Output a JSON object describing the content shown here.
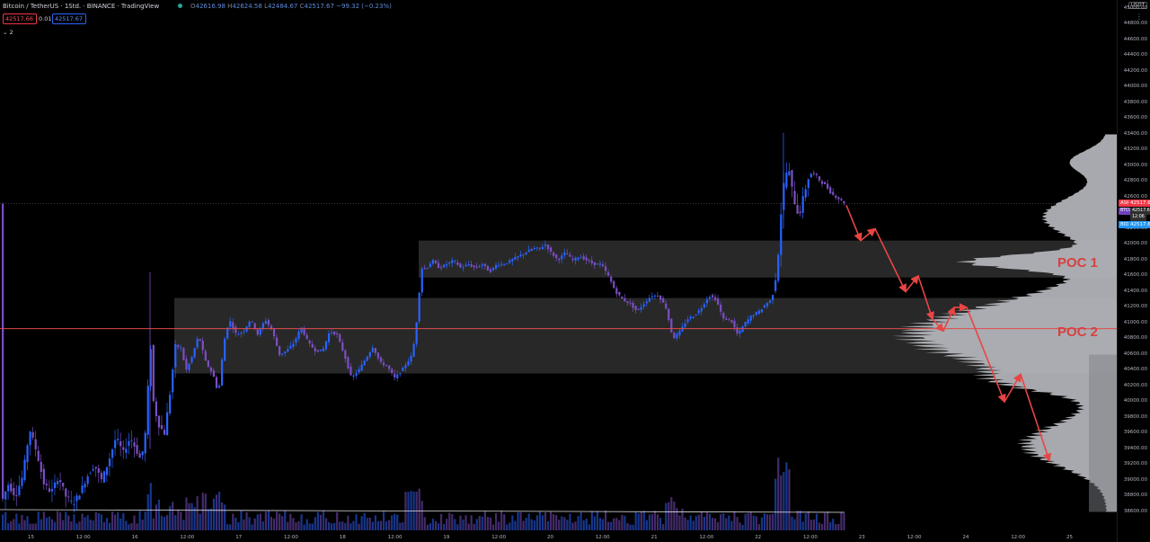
{
  "header": {
    "symbol": "Bitcoin / TetherUS · 1Std. · BINANCE · TradingView",
    "ohlc": {
      "o_label": "O",
      "o": "42616.98",
      "h_label": "H",
      "h": "42624.58",
      "l_label": "L",
      "l": "42484.67",
      "c_label": "C",
      "c": "42517.67",
      "change": "−99.32 (−0.23%)"
    },
    "sell_price": "42517.66",
    "spread": "0.01",
    "buy_price": "42517.67",
    "indicator_count": "2"
  },
  "price_axis": {
    "currency": "USDT",
    "ticks": [
      "45000.00",
      "44800.00",
      "44600.00",
      "44400.00",
      "44200.00",
      "44000.00",
      "43800.00",
      "43600.00",
      "43400.00",
      "43200.00",
      "43000.00",
      "42800.00",
      "42600.00",
      "42400.00",
      "42200.00",
      "42000.00",
      "41800.00",
      "41600.00",
      "41400.00",
      "41200.00",
      "41000.00",
      "40800.00",
      "40600.00",
      "40400.00",
      "40200.00",
      "40000.00",
      "39800.00",
      "39600.00",
      "39400.00",
      "39200.00",
      "39000.00",
      "38800.00",
      "38600.00"
    ],
    "ask_label": "ASK",
    "ask_price": "42517.67",
    "symbol_label": "BTCUSDT",
    "symbol_price": "42517.67",
    "countdown": "12:06",
    "bid_label": "BID",
    "bid_price": "42517.66"
  },
  "time_axis": {
    "ticks": [
      "15",
      "12:00",
      "16",
      "12:00",
      "17",
      "12:00",
      "18",
      "12:00",
      "19",
      "12:00",
      "20",
      "12:00",
      "21",
      "12:00",
      "22",
      "12:00",
      "23",
      "12:00",
      "24",
      "12:00",
      "25"
    ]
  },
  "annotations": {
    "poc1": "POC 1",
    "poc2": "POC 2"
  },
  "colors": {
    "up_candle": "#2962ff",
    "down_candle": "#7b4fc4",
    "poc_line": "#e04a4a",
    "zone": "#2a2a2a",
    "profile": "#b5b7bd",
    "arrow": "#e84545"
  },
  "chart_data": {
    "type": "candlestick",
    "symbol": "BTCUSDT",
    "interval": "1h",
    "ylim": [
      38500,
      45200
    ],
    "current_price": 42517.67,
    "poc_line_price": 40930,
    "zones": [
      {
        "name": "POC 1",
        "from_price": 41580,
        "to_price": 42050
      },
      {
        "name": "POC 2",
        "from_price": 40360,
        "to_price": 41320
      }
    ],
    "candle_path": [
      [
        0,
        38700
      ],
      [
        8,
        38950
      ],
      [
        16,
        38800
      ],
      [
        24,
        39050
      ],
      [
        32,
        39650
      ],
      [
        40,
        39350
      ],
      [
        48,
        38950
      ],
      [
        56,
        38850
      ],
      [
        64,
        39050
      ],
      [
        72,
        38800
      ],
      [
        80,
        38700
      ],
      [
        88,
        38850
      ],
      [
        96,
        39050
      ],
      [
        104,
        39200
      ],
      [
        112,
        39000
      ],
      [
        120,
        39250
      ],
      [
        128,
        39550
      ],
      [
        136,
        39350
      ],
      [
        144,
        39550
      ],
      [
        150,
        39400
      ],
      [
        156,
        39250
      ],
      [
        162,
        39700
      ],
      [
        166,
        40850
      ],
      [
        170,
        39950
      ],
      [
        176,
        39700
      ],
      [
        182,
        39600
      ],
      [
        188,
        40100
      ],
      [
        194,
        40700
      ],
      [
        200,
        40700
      ],
      [
        206,
        40400
      ],
      [
        212,
        40550
      ],
      [
        220,
        40850
      ],
      [
        228,
        40500
      ],
      [
        236,
        40350
      ],
      [
        242,
        40100
      ],
      [
        248,
        40750
      ],
      [
        254,
        41050
      ],
      [
        262,
        40850
      ],
      [
        270,
        40900
      ],
      [
        278,
        41050
      ],
      [
        286,
        40850
      ],
      [
        294,
        41050
      ],
      [
        302,
        40900
      ],
      [
        310,
        40600
      ],
      [
        318,
        40650
      ],
      [
        326,
        40750
      ],
      [
        334,
        40950
      ],
      [
        342,
        40750
      ],
      [
        350,
        40650
      ],
      [
        358,
        40650
      ],
      [
        366,
        40900
      ],
      [
        374,
        40850
      ],
      [
        382,
        40600
      ],
      [
        390,
        40300
      ],
      [
        398,
        40400
      ],
      [
        406,
        40550
      ],
      [
        414,
        40700
      ],
      [
        422,
        40500
      ],
      [
        430,
        40450
      ],
      [
        438,
        40300
      ],
      [
        446,
        40400
      ],
      [
        452,
        40500
      ],
      [
        458,
        40600
      ],
      [
        462,
        40950
      ],
      [
        468,
        41700
      ],
      [
        474,
        41700
      ],
      [
        480,
        41800
      ],
      [
        488,
        41700
      ],
      [
        496,
        41750
      ],
      [
        504,
        41800
      ],
      [
        512,
        41700
      ],
      [
        520,
        41750
      ],
      [
        528,
        41700
      ],
      [
        536,
        41750
      ],
      [
        544,
        41650
      ],
      [
        552,
        41750
      ],
      [
        560,
        41750
      ],
      [
        568,
        41800
      ],
      [
        576,
        41850
      ],
      [
        584,
        41900
      ],
      [
        592,
        41950
      ],
      [
        600,
        41950
      ],
      [
        606,
        42000
      ],
      [
        612,
        41900
      ],
      [
        620,
        41800
      ],
      [
        628,
        41900
      ],
      [
        636,
        41800
      ],
      [
        644,
        41850
      ],
      [
        652,
        41800
      ],
      [
        660,
        41750
      ],
      [
        668,
        41750
      ],
      [
        676,
        41600
      ],
      [
        684,
        41400
      ],
      [
        692,
        41300
      ],
      [
        700,
        41250
      ],
      [
        708,
        41150
      ],
      [
        716,
        41250
      ],
      [
        724,
        41350
      ],
      [
        732,
        41350
      ],
      [
        740,
        41200
      ],
      [
        748,
        40800
      ],
      [
        756,
        40900
      ],
      [
        764,
        41050
      ],
      [
        772,
        41100
      ],
      [
        780,
        41200
      ],
      [
        788,
        41350
      ],
      [
        796,
        41300
      ],
      [
        804,
        41050
      ],
      [
        812,
        41050
      ],
      [
        820,
        40850
      ],
      [
        828,
        41000
      ],
      [
        836,
        41100
      ],
      [
        844,
        41150
      ],
      [
        852,
        41250
      ],
      [
        858,
        41300
      ],
      [
        864,
        41700
      ],
      [
        870,
        42700
      ],
      [
        876,
        43000
      ],
      [
        882,
        42600
      ],
      [
        888,
        42350
      ],
      [
        894,
        42650
      ],
      [
        900,
        42900
      ],
      [
        906,
        42900
      ],
      [
        912,
        42800
      ],
      [
        918,
        42750
      ],
      [
        924,
        42650
      ],
      [
        930,
        42600
      ],
      [
        936,
        42550
      ],
      [
        940,
        42517.67
      ]
    ],
    "projection_path": [
      [
        942,
        42500
      ],
      [
        958,
        42050
      ],
      [
        974,
        42200
      ],
      [
        1008,
        41400
      ],
      [
        1022,
        41600
      ],
      [
        1038,
        41050
      ],
      [
        1050,
        40900
      ],
      [
        1062,
        41200
      ],
      [
        1076,
        41200
      ],
      [
        1118,
        40000
      ],
      [
        1136,
        40350
      ],
      [
        1168,
        39250
      ]
    ]
  }
}
